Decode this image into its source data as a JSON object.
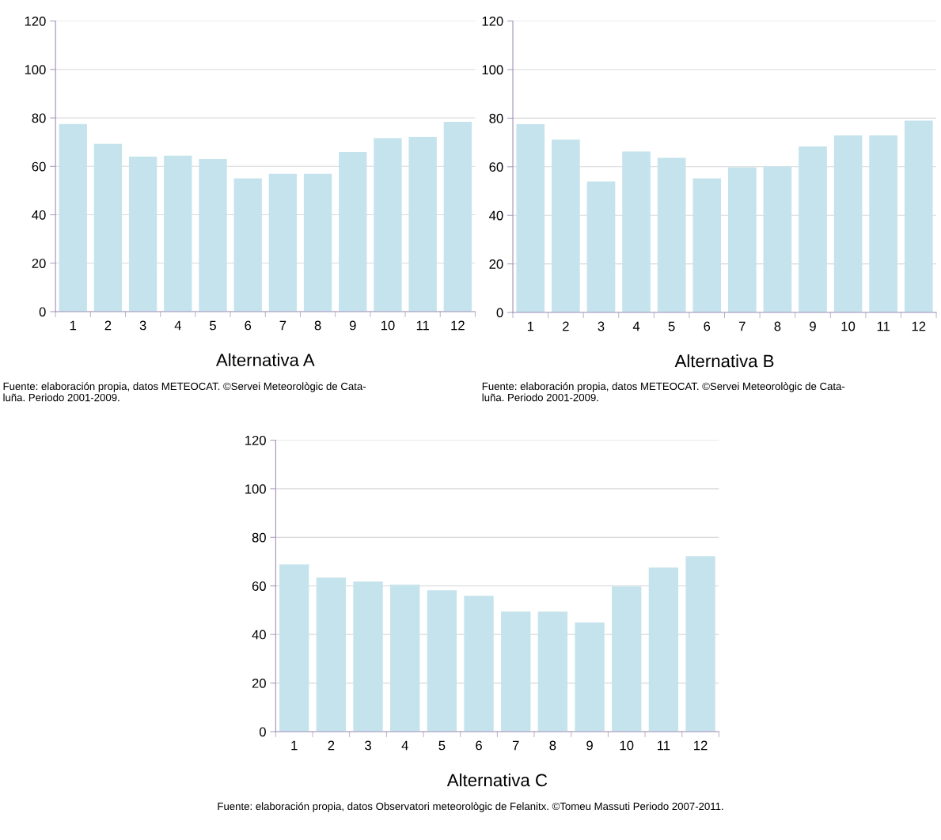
{
  "chart_data": [
    {
      "type": "bar",
      "title": "Alternativa A",
      "categories": [
        "1",
        "2",
        "3",
        "4",
        "5",
        "6",
        "7",
        "8",
        "9",
        "10",
        "11",
        "12"
      ],
      "values": [
        77.5,
        69.3,
        64,
        64.4,
        63,
        55,
        56.9,
        56.9,
        66,
        71.6,
        72.2,
        78.4
      ],
      "color": "#c5e3ec",
      "ylim": [
        0,
        120
      ],
      "yticks": [
        0,
        20,
        40,
        60,
        80,
        100,
        120
      ],
      "grid": "y",
      "annotations": [
        "Fuente: elaboración propia, datos METEOCAT. ©Servei Meteorològic de Cata-\nluña. Periodo 2001-2009."
      ]
    },
    {
      "type": "bar",
      "title": "Alternativa B",
      "categories": [
        "1",
        "2",
        "3",
        "4",
        "5",
        "6",
        "7",
        "8",
        "9",
        "10",
        "11",
        "12"
      ],
      "values": [
        77.5,
        71.2,
        53.9,
        66.3,
        63.7,
        55.2,
        59.8,
        60.1,
        68.3,
        72.9,
        72.9,
        79
      ],
      "color": "#c5e3ec",
      "ylim": [
        0,
        120
      ],
      "yticks": [
        0,
        20,
        40,
        60,
        80,
        100,
        120
      ],
      "grid": "y",
      "annotations": [
        "Fuente: elaboración propia, datos METEOCAT. ©Servei Meteorològic de Cata-\nluña. Periodo 2001-2009."
      ]
    },
    {
      "type": "bar",
      "title": "Alternativa C",
      "categories": [
        "1",
        "2",
        "3",
        "4",
        "5",
        "6",
        "7",
        "8",
        "9",
        "10",
        "11",
        "12"
      ],
      "values": [
        68.9,
        63.4,
        61.8,
        60.5,
        58.2,
        55.9,
        49.4,
        49.4,
        44.9,
        59.8,
        67.6,
        72.2
      ],
      "color": "#c5e3ec",
      "ylim": [
        0,
        120
      ],
      "yticks": [
        0,
        20,
        40,
        60,
        80,
        100,
        120
      ],
      "grid": "y",
      "annotations": [
        "Fuente: elaboración propia, datos Observatori meteorològic de Felanitx. ©Tomeu Massuti Periodo 2007-2011."
      ]
    }
  ]
}
